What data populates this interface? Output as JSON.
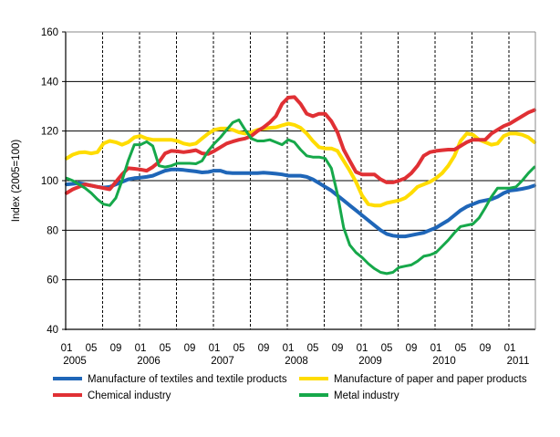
{
  "chart_data": {
    "type": "line",
    "title": "",
    "xlabel": "",
    "ylabel": "Index (2005=100)",
    "ylim": [
      40,
      160
    ],
    "yticks": [
      40,
      60,
      80,
      100,
      120,
      140,
      160
    ],
    "x_start": "2005-01",
    "x_end": "2011-05",
    "frequency": "monthly",
    "xtick_labels": [
      {
        "month": "01",
        "year": "2005"
      },
      {
        "month": "05",
        "year": ""
      },
      {
        "month": "09",
        "year": ""
      },
      {
        "month": "01",
        "year": "2006"
      },
      {
        "month": "05",
        "year": ""
      },
      {
        "month": "09",
        "year": ""
      },
      {
        "month": "01",
        "year": "2007"
      },
      {
        "month": "05",
        "year": ""
      },
      {
        "month": "09",
        "year": ""
      },
      {
        "month": "01",
        "year": "2008"
      },
      {
        "month": "05",
        "year": ""
      },
      {
        "month": "09",
        "year": ""
      },
      {
        "month": "01",
        "year": "2009"
      },
      {
        "month": "05",
        "year": ""
      },
      {
        "month": "09",
        "year": ""
      },
      {
        "month": "01",
        "year": "2010"
      },
      {
        "month": "05",
        "year": ""
      },
      {
        "month": "09",
        "year": ""
      },
      {
        "month": "01",
        "year": "2011"
      }
    ],
    "grid": {
      "horizontal": "solid",
      "vertical": "dashed every 6 months"
    },
    "legend_position": "bottom",
    "series": [
      {
        "name": "Manufacture of textiles and textile products",
        "color": "#1f66b8",
        "values": [
          98.5,
          98.7,
          99,
          98.6,
          98,
          97.5,
          97.2,
          97.5,
          98.5,
          99.5,
          100.5,
          101,
          101.2,
          101.5,
          102,
          103,
          104,
          104.5,
          104.5,
          104.3,
          104,
          103.7,
          103.3,
          103.5,
          104,
          104,
          103.2,
          103,
          103,
          103,
          103,
          103,
          103.2,
          103,
          102.8,
          102.5,
          102,
          102,
          102,
          101.5,
          100.5,
          99,
          97.5,
          96,
          94,
          92,
          90,
          88,
          86,
          84,
          82,
          80,
          78.5,
          77.8,
          77.5,
          77.5,
          78,
          78.5,
          79,
          80,
          81,
          82.5,
          84,
          86,
          88,
          89.5,
          90.5,
          91.5,
          92,
          92.5,
          93.5,
          95,
          96,
          96.3,
          96.7,
          97.2,
          98
        ]
      },
      {
        "name": "Manufacture of paper and paper products",
        "color": "#ffdc00",
        "values": [
          109,
          110.5,
          111.3,
          111.5,
          111,
          111.5,
          115,
          116,
          115.5,
          114.5,
          115.5,
          117.5,
          118,
          117,
          116.5,
          116.5,
          116.5,
          116.5,
          116,
          115,
          114.5,
          115,
          117,
          119,
          120.5,
          121,
          121,
          120.5,
          119.5,
          119,
          119.5,
          120.5,
          121,
          121.3,
          121.5,
          122.3,
          123,
          122.5,
          121.3,
          119,
          116,
          113.5,
          113,
          113,
          112,
          108,
          104,
          99.5,
          94,
          90.5,
          90,
          90,
          91,
          91.5,
          92,
          93,
          95,
          97.5,
          98.5,
          99.5,
          101,
          103,
          106,
          110,
          116,
          119,
          118.5,
          116.5,
          115.5,
          114.5,
          115,
          118,
          119,
          119,
          118.5,
          117.5,
          115.5
        ]
      },
      {
        "name": "Chemical industry",
        "color": "#e03034",
        "values": [
          95,
          96.5,
          97.5,
          98.5,
          98,
          97.5,
          97,
          96.5,
          99.5,
          102.5,
          105,
          104.8,
          104.5,
          104,
          105.5,
          107.5,
          111,
          112,
          111.8,
          111.5,
          111.8,
          112.3,
          111,
          110.8,
          112,
          113.5,
          115,
          115.8,
          116.5,
          117,
          118,
          120,
          121.5,
          123.5,
          126,
          131,
          133.5,
          133.7,
          131,
          127,
          126,
          127,
          127,
          124,
          119.5,
          112.5,
          108,
          103.5,
          102.5,
          102.5,
          102.5,
          100.5,
          99.3,
          99.3,
          100,
          101,
          103,
          106,
          110,
          111.5,
          112,
          112.3,
          112.5,
          112.5,
          114,
          115.5,
          116.5,
          116.5,
          116.5,
          119,
          120.5,
          122,
          123,
          124.5,
          126,
          127.5,
          128.5
        ]
      },
      {
        "name": "Metal industry",
        "color": "#16a84a",
        "values": [
          101,
          100,
          98.5,
          97,
          95,
          92.5,
          90.5,
          90,
          93,
          100,
          108,
          114.5,
          114.5,
          115.7,
          114,
          106,
          105.5,
          106,
          107,
          107,
          107,
          106.8,
          108,
          112,
          115,
          117.5,
          120.5,
          123.5,
          124.5,
          120.5,
          117,
          116,
          116,
          116.5,
          115.5,
          114.5,
          116.5,
          115.5,
          112.5,
          110,
          109.5,
          109.5,
          109,
          105,
          94.5,
          81,
          74,
          71,
          69,
          66.5,
          64.5,
          63,
          62.5,
          63,
          65,
          65.5,
          66,
          67.5,
          69.5,
          70,
          71,
          73.5,
          76,
          79,
          81.5,
          82,
          82.5,
          85,
          89,
          93.5,
          97,
          97,
          97,
          97.5,
          100,
          103,
          105.5
        ]
      }
    ]
  }
}
